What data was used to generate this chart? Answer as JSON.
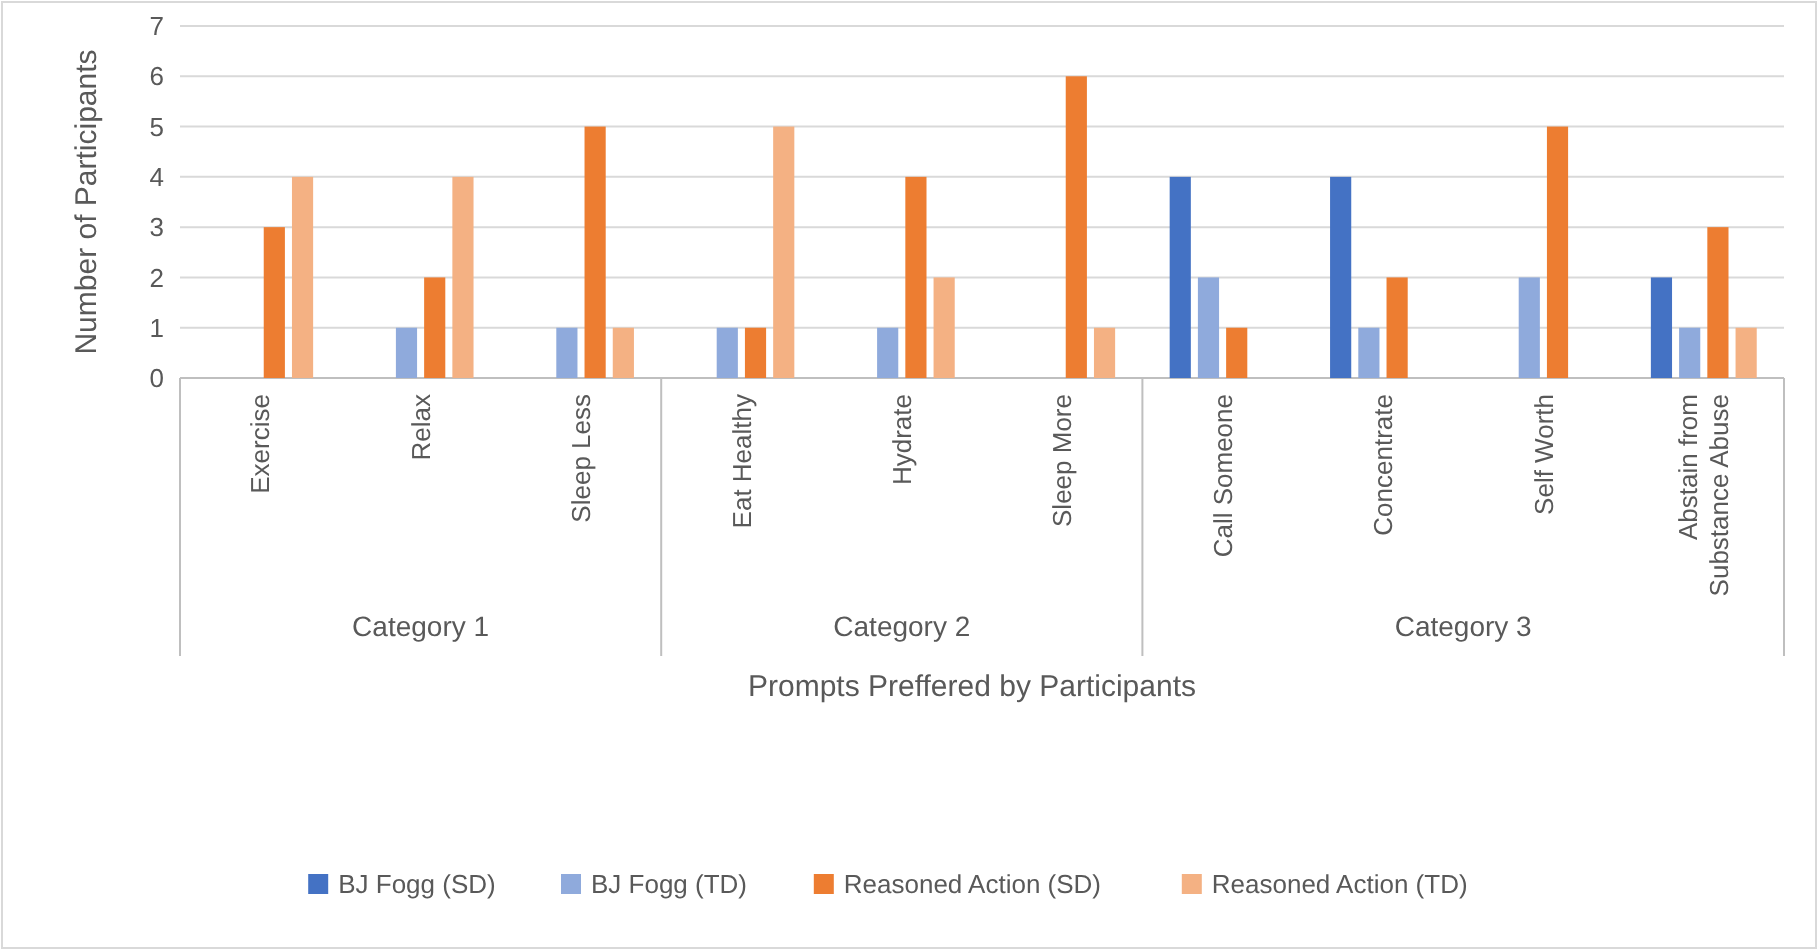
{
  "chart_data": {
    "type": "bar",
    "xlabel": "Prompts Preffered by Participants",
    "ylabel": "Number of Participants",
    "categories": [
      "Exercise",
      "Relax",
      "Sleep Less",
      "Eat Healthy",
      "Hydrate",
      "Sleep More",
      "Call Someone",
      "Concentrate",
      "Self Worth",
      "Abstain from Substance Abuse"
    ],
    "series": [
      {
        "name": "BJ Fogg (SD)",
        "color": "#4472c4",
        "values": [
          0,
          0,
          0,
          0,
          0,
          0,
          4,
          4,
          0,
          2
        ]
      },
      {
        "name": "BJ Fogg (TD)",
        "color": "#8faadc",
        "values": [
          0,
          1,
          1,
          1,
          1,
          0,
          2,
          1,
          2,
          1
        ]
      },
      {
        "name": "Reasoned Action (SD)",
        "color": "#ed7d31",
        "values": [
          3,
          2,
          5,
          1,
          4,
          6,
          1,
          2,
          5,
          3
        ]
      },
      {
        "name": "Reasoned Action (TD)",
        "color": "#f4b183",
        "values": [
          4,
          4,
          1,
          5,
          2,
          1,
          0,
          0,
          0,
          1
        ]
      }
    ],
    "annotations": [
      "Category 1",
      "Category 2",
      "Category 3"
    ],
    "ylim": [
      0,
      7
    ],
    "yticks": [
      0,
      1,
      2,
      3,
      4,
      5,
      6,
      7
    ],
    "grid": "y",
    "legend": "bottom"
  }
}
